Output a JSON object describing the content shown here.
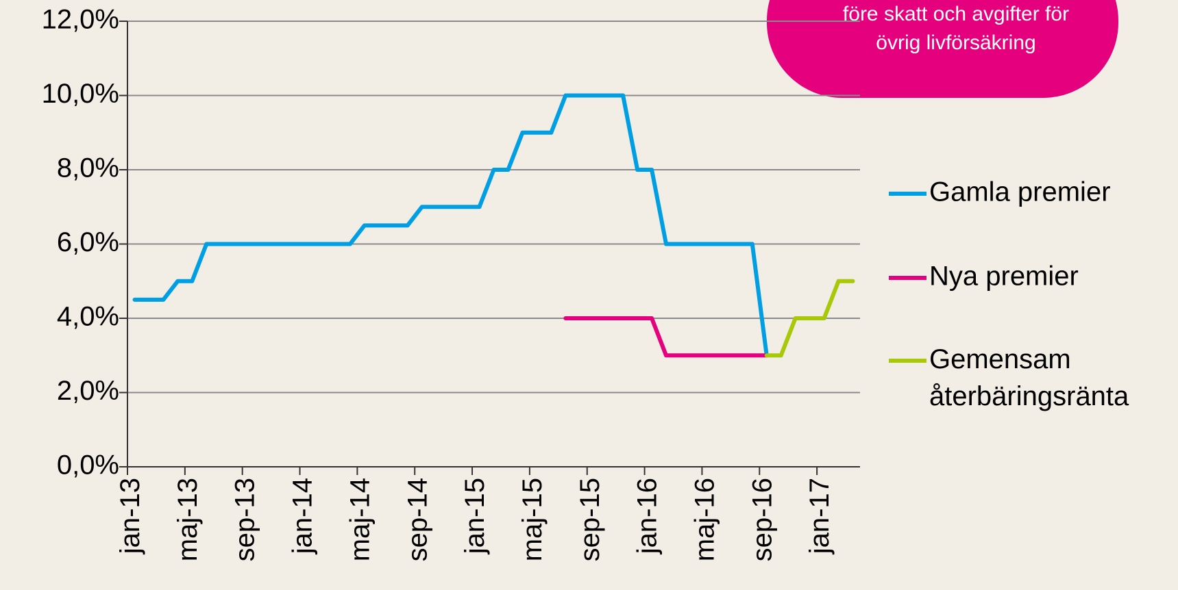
{
  "chart_data": {
    "type": "line",
    "annotation": [
      "före skatt och avgifter för",
      "övrig livförsäkring"
    ],
    "categories": [
      "jan-13",
      null,
      null,
      null,
      "maj-13",
      null,
      null,
      null,
      "sep-13",
      null,
      null,
      null,
      "jan-14",
      null,
      null,
      null,
      "maj-14",
      null,
      null,
      null,
      "sep-14",
      null,
      null,
      null,
      "jan-15",
      null,
      null,
      null,
      "maj-15",
      null,
      null,
      null,
      "sep-15",
      null,
      null,
      null,
      "jan-16",
      null,
      null,
      null,
      "maj-16",
      null,
      null,
      null,
      "sep-16",
      null,
      null,
      null,
      "jan-17",
      null,
      null
    ],
    "series": [
      {
        "name": "Gamla premier",
        "color": "#009fe3",
        "values": [
          4.5,
          4.5,
          4.5,
          5.0,
          5.0,
          6.0,
          6.0,
          6.0,
          6.0,
          6.0,
          6.0,
          6.0,
          6.0,
          6.0,
          6.0,
          6.0,
          6.5,
          6.5,
          6.5,
          6.5,
          7.0,
          7.0,
          7.0,
          7.0,
          7.0,
          8.0,
          8.0,
          9.0,
          9.0,
          9.0,
          10.0,
          10.0,
          10.0,
          10.0,
          10.0,
          8.0,
          8.0,
          6.0,
          6.0,
          6.0,
          6.0,
          6.0,
          6.0,
          6.0,
          3.0,
          null,
          null,
          null,
          null,
          null,
          null
        ]
      },
      {
        "name": "Nya premier",
        "color": "#e5007d",
        "values": [
          null,
          null,
          null,
          null,
          null,
          null,
          null,
          null,
          null,
          null,
          null,
          null,
          null,
          null,
          null,
          null,
          null,
          null,
          null,
          null,
          null,
          null,
          null,
          null,
          null,
          null,
          null,
          null,
          null,
          null,
          4.0,
          4.0,
          4.0,
          4.0,
          4.0,
          4.0,
          4.0,
          3.0,
          3.0,
          3.0,
          3.0,
          3.0,
          3.0,
          3.0,
          3.0,
          null,
          null,
          null,
          null,
          null,
          null
        ]
      },
      {
        "name": "Gemensam återbäringsränta",
        "color": "#a9c80a",
        "values": [
          null,
          null,
          null,
          null,
          null,
          null,
          null,
          null,
          null,
          null,
          null,
          null,
          null,
          null,
          null,
          null,
          null,
          null,
          null,
          null,
          null,
          null,
          null,
          null,
          null,
          null,
          null,
          null,
          null,
          null,
          null,
          null,
          null,
          null,
          null,
          null,
          null,
          null,
          null,
          null,
          null,
          null,
          null,
          null,
          3.0,
          3.0,
          4.0,
          4.0,
          4.0,
          5.0,
          5.0
        ]
      }
    ],
    "ylim": [
      0,
      12
    ],
    "yticks": [
      {
        "value": 0,
        "label": "0,0%"
      },
      {
        "value": 2,
        "label": "2,0%"
      },
      {
        "value": 4,
        "label": "4,0%"
      },
      {
        "value": 6,
        "label": "6,0%"
      },
      {
        "value": 8,
        "label": "8,0%"
      },
      {
        "value": 10,
        "label": "10,0%"
      },
      {
        "value": 12,
        "label": "12,0%"
      }
    ],
    "grid": true,
    "legend": "right"
  }
}
